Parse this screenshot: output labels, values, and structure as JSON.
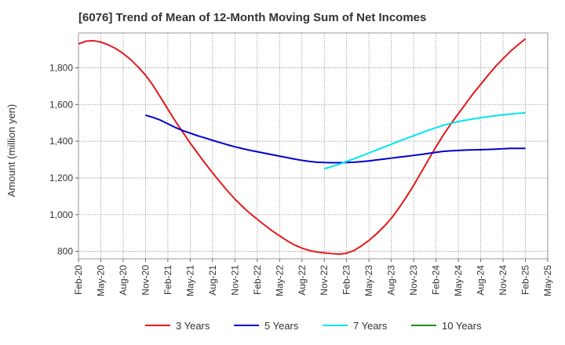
{
  "chart_data": {
    "type": "line",
    "title": "[6076]  Trend of Mean of 12-Month Moving Sum of Net Incomes",
    "xlabel": "",
    "ylabel": "Amount (million yen)",
    "x_tick_labels": [
      "Feb-20",
      "May-20",
      "Aug-20",
      "Nov-20",
      "Feb-21",
      "May-21",
      "Aug-21",
      "Nov-21",
      "Feb-22",
      "May-22",
      "Aug-22",
      "Nov-22",
      "Feb-23",
      "May-23",
      "Aug-23",
      "Nov-23",
      "Feb-24",
      "May-24",
      "Aug-24",
      "Nov-24",
      "Feb-25",
      "May-25"
    ],
    "xlim": [
      "Feb-20",
      "May-25"
    ],
    "yticks": [
      800,
      1000,
      1200,
      1400,
      1600,
      1800
    ],
    "y_tick_labels": [
      "800",
      "1,000",
      "1,200",
      "1,400",
      "1,600",
      "1,800"
    ],
    "ylim": [
      760,
      1990
    ],
    "grid": true,
    "legend_position": "bottom",
    "series": [
      {
        "name": "3 Years",
        "color": "#e31a1c",
        "points": [
          [
            "Feb-20",
            1930
          ],
          [
            "Mar-20",
            1945
          ],
          [
            "Apr-20",
            1948
          ],
          [
            "May-20",
            1940
          ],
          [
            "Jun-20",
            1925
          ],
          [
            "Jul-20",
            1905
          ],
          [
            "Aug-20",
            1878
          ],
          [
            "Sep-20",
            1845
          ],
          [
            "Oct-20",
            1805
          ],
          [
            "Nov-20",
            1760
          ],
          [
            "Dec-20",
            1705
          ],
          [
            "Jan-21",
            1640
          ],
          [
            "Feb-21",
            1575
          ],
          [
            "Mar-21",
            1510
          ],
          [
            "Apr-21",
            1450
          ],
          [
            "May-21",
            1390
          ],
          [
            "Jun-21",
            1335
          ],
          [
            "Jul-21",
            1280
          ],
          [
            "Aug-21",
            1228
          ],
          [
            "Sep-21",
            1178
          ],
          [
            "Oct-21",
            1130
          ],
          [
            "Nov-21",
            1085
          ],
          [
            "Dec-21",
            1045
          ],
          [
            "Jan-22",
            1008
          ],
          [
            "Feb-22",
            975
          ],
          [
            "Mar-22",
            943
          ],
          [
            "Apr-22",
            912
          ],
          [
            "May-22",
            885
          ],
          [
            "Jun-22",
            858
          ],
          [
            "Jul-22",
            835
          ],
          [
            "Aug-22",
            818
          ],
          [
            "Sep-22",
            805
          ],
          [
            "Oct-22",
            797
          ],
          [
            "Nov-22",
            792
          ],
          [
            "Dec-22",
            788
          ],
          [
            "Jan-23",
            785
          ],
          [
            "Feb-23",
            790
          ],
          [
            "Mar-23",
            805
          ],
          [
            "Apr-23",
            830
          ],
          [
            "May-23",
            860
          ],
          [
            "Jun-23",
            895
          ],
          [
            "Jul-23",
            935
          ],
          [
            "Aug-23",
            980
          ],
          [
            "Sep-23",
            1035
          ],
          [
            "Oct-23",
            1095
          ],
          [
            "Nov-23",
            1160
          ],
          [
            "Dec-23",
            1230
          ],
          [
            "Jan-24",
            1300
          ],
          [
            "Feb-24",
            1370
          ],
          [
            "Mar-24",
            1435
          ],
          [
            "Apr-24",
            1495
          ],
          [
            "May-24",
            1550
          ],
          [
            "Jun-24",
            1605
          ],
          [
            "Jul-24",
            1660
          ],
          [
            "Aug-24",
            1710
          ],
          [
            "Sep-24",
            1760
          ],
          [
            "Oct-24",
            1808
          ],
          [
            "Nov-24",
            1850
          ],
          [
            "Dec-24",
            1890
          ],
          [
            "Jan-25",
            1925
          ],
          [
            "Feb-25",
            1958
          ]
        ]
      },
      {
        "name": "5 Years",
        "color": "#0000cd",
        "points": [
          [
            "Nov-20",
            1542
          ],
          [
            "Dec-20",
            1530
          ],
          [
            "Jan-21",
            1515
          ],
          [
            "Feb-21",
            1495
          ],
          [
            "Mar-21",
            1475
          ],
          [
            "Apr-21",
            1458
          ],
          [
            "May-21",
            1444
          ],
          [
            "Jun-21",
            1430
          ],
          [
            "Jul-21",
            1418
          ],
          [
            "Aug-21",
            1405
          ],
          [
            "Sep-21",
            1393
          ],
          [
            "Oct-21",
            1381
          ],
          [
            "Nov-21",
            1370
          ],
          [
            "Dec-21",
            1360
          ],
          [
            "Jan-22",
            1351
          ],
          [
            "Feb-22",
            1343
          ],
          [
            "Mar-22",
            1335
          ],
          [
            "Apr-22",
            1327
          ],
          [
            "May-22",
            1319
          ],
          [
            "Jun-22",
            1311
          ],
          [
            "Jul-22",
            1303
          ],
          [
            "Aug-22",
            1296
          ],
          [
            "Sep-22",
            1290
          ],
          [
            "Oct-22",
            1286
          ],
          [
            "Nov-22",
            1284
          ],
          [
            "Dec-22",
            1283
          ],
          [
            "Jan-23",
            1283
          ],
          [
            "Feb-23",
            1284
          ],
          [
            "Mar-23",
            1286
          ],
          [
            "Apr-23",
            1289
          ],
          [
            "May-23",
            1293
          ],
          [
            "Jun-23",
            1298
          ],
          [
            "Jul-23",
            1303
          ],
          [
            "Aug-23",
            1308
          ],
          [
            "Sep-23",
            1313
          ],
          [
            "Oct-23",
            1318
          ],
          [
            "Nov-23",
            1323
          ],
          [
            "Dec-23",
            1328
          ],
          [
            "Jan-24",
            1334
          ],
          [
            "Feb-24",
            1340
          ],
          [
            "Mar-24",
            1345
          ],
          [
            "Apr-24",
            1348
          ],
          [
            "May-24",
            1350
          ],
          [
            "Jun-24",
            1352
          ],
          [
            "Jul-24",
            1353
          ],
          [
            "Aug-24",
            1354
          ],
          [
            "Sep-24",
            1355
          ],
          [
            "Oct-24",
            1357
          ],
          [
            "Nov-24",
            1359
          ],
          [
            "Dec-24",
            1361
          ],
          [
            "Jan-25",
            1361
          ],
          [
            "Feb-25",
            1361
          ]
        ]
      },
      {
        "name": "7 Years",
        "color": "#00e5ee",
        "points": [
          [
            "Nov-22",
            1250
          ],
          [
            "Dec-22",
            1262
          ],
          [
            "Jan-23",
            1275
          ],
          [
            "Feb-23",
            1290
          ],
          [
            "Mar-23",
            1305
          ],
          [
            "Apr-23",
            1320
          ],
          [
            "May-23",
            1336
          ],
          [
            "Jun-23",
            1352
          ],
          [
            "Jul-23",
            1368
          ],
          [
            "Aug-23",
            1384
          ],
          [
            "Sep-23",
            1400
          ],
          [
            "Oct-23",
            1415
          ],
          [
            "Nov-23",
            1430
          ],
          [
            "Dec-23",
            1445
          ],
          [
            "Jan-24",
            1460
          ],
          [
            "Feb-24",
            1474
          ],
          [
            "Mar-24",
            1487
          ],
          [
            "Apr-24",
            1498
          ],
          [
            "May-24",
            1507
          ],
          [
            "Jun-24",
            1515
          ],
          [
            "Jul-24",
            1522
          ],
          [
            "Aug-24",
            1528
          ],
          [
            "Sep-24",
            1534
          ],
          [
            "Oct-24",
            1539
          ],
          [
            "Nov-24",
            1544
          ],
          [
            "Dec-24",
            1548
          ],
          [
            "Jan-25",
            1552
          ],
          [
            "Feb-25",
            1555
          ]
        ]
      },
      {
        "name": "10 Years",
        "color": "#228b22",
        "points": []
      }
    ]
  }
}
